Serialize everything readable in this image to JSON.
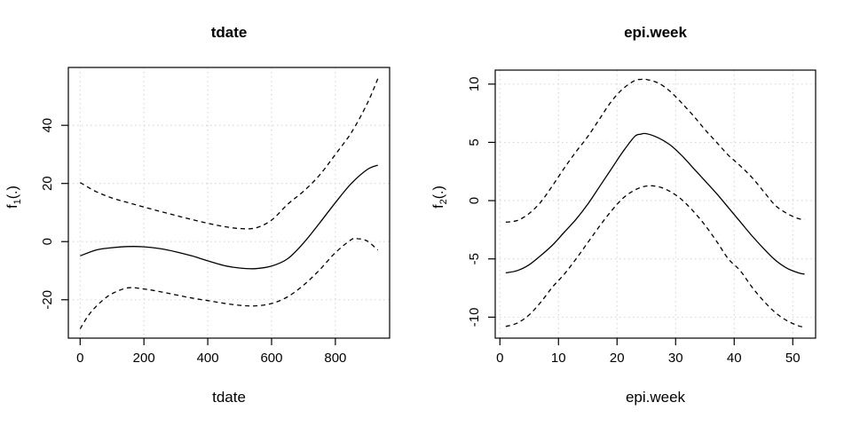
{
  "chart_data": [
    {
      "type": "line",
      "title": "tdate",
      "xlabel": "tdate",
      "ylabel": "f1(.)",
      "ylabel_parts": {
        "prefix": "f",
        "sub": "1",
        "suffix": "(.)"
      },
      "xlim": [
        -37,
        970
      ],
      "ylim": [
        -33.2,
        59.9
      ],
      "xticks": [
        0,
        200,
        400,
        600,
        800
      ],
      "yticks": [
        -20,
        0,
        20,
        40
      ],
      "grid": true,
      "legend": null,
      "colors": {
        "line": "#000000",
        "grid": "#d6d6d6",
        "box": "#000000"
      },
      "series": [
        {
          "name": "fit",
          "style": "solid",
          "x": [
            0,
            50,
            100,
            150,
            200,
            250,
            300,
            350,
            400,
            450,
            500,
            550,
            600,
            650,
            700,
            750,
            800,
            850,
            900,
            933
          ],
          "y": [
            -4.9,
            -2.9,
            -2.1,
            -1.7,
            -1.8,
            -2.4,
            -3.5,
            -4.9,
            -6.6,
            -8.2,
            -9.1,
            -9.3,
            -8.4,
            -5.9,
            -0.5,
            6.3,
            13.4,
            20.0,
            24.8,
            26.3
          ]
        },
        {
          "name": "upper-95-ci",
          "style": "dashed",
          "x": [
            0,
            50,
            100,
            150,
            200,
            250,
            300,
            350,
            400,
            450,
            500,
            550,
            600,
            650,
            700,
            750,
            800,
            850,
            900,
            933
          ],
          "y": [
            20.3,
            17.2,
            15.0,
            13.4,
            11.9,
            10.4,
            9.0,
            7.6,
            6.3,
            5.2,
            4.5,
            4.7,
            7.4,
            12.8,
            17.3,
            22.8,
            30.0,
            37.5,
            47.5,
            56.0
          ]
        },
        {
          "name": "lower-95-ci",
          "style": "dashed",
          "x": [
            0,
            25,
            50,
            75,
            100,
            150,
            200,
            250,
            300,
            350,
            400,
            450,
            500,
            550,
            600,
            650,
            700,
            750,
            800,
            850,
            870,
            900,
            933
          ],
          "y": [
            -30.0,
            -25.5,
            -22.3,
            -19.8,
            -17.9,
            -15.9,
            -16.3,
            -17.2,
            -18.3,
            -19.4,
            -20.3,
            -21.2,
            -21.9,
            -22.1,
            -21.3,
            -19.0,
            -15.0,
            -9.8,
            -3.8,
            0.7,
            1.0,
            0.2,
            -2.9
          ]
        }
      ]
    },
    {
      "type": "line",
      "title": "epi.week",
      "xlabel": "epi.week",
      "ylabel": "f2(.)",
      "ylabel_parts": {
        "prefix": "f",
        "sub": "2",
        "suffix": "(.)"
      },
      "xlim": [
        -0.8,
        53.9
      ],
      "ylim": [
        -11.8,
        11.2
      ],
      "xticks": [
        0,
        10,
        20,
        30,
        40,
        50
      ],
      "yticks": [
        -10,
        -5,
        0,
        5,
        10
      ],
      "grid": true,
      "legend": null,
      "colors": {
        "line": "#000000",
        "grid": "#d6d6d6",
        "box": "#000000"
      },
      "series": [
        {
          "name": "fit",
          "style": "solid",
          "x": [
            1,
            3,
            5,
            7,
            9,
            11,
            13,
            15,
            17,
            19,
            21,
            23,
            24,
            25,
            27,
            29,
            31,
            33,
            35,
            37,
            39,
            41,
            43,
            45,
            47,
            49,
            51,
            52
          ],
          "y": [
            -6.2,
            -6.0,
            -5.5,
            -4.7,
            -3.8,
            -2.7,
            -1.6,
            -0.3,
            1.2,
            2.7,
            4.2,
            5.5,
            5.7,
            5.75,
            5.4,
            4.8,
            3.9,
            2.8,
            1.7,
            0.6,
            -0.6,
            -1.8,
            -3.0,
            -4.1,
            -5.1,
            -5.8,
            -6.2,
            -6.3
          ]
        },
        {
          "name": "upper-95-ci",
          "style": "dashed",
          "x": [
            1,
            3,
            5,
            7,
            9,
            11,
            13,
            15,
            17,
            19,
            21,
            23,
            24,
            25,
            27,
            29,
            31,
            33,
            35,
            37,
            39,
            41,
            43,
            45,
            47,
            49,
            51,
            52
          ],
          "y": [
            -1.85,
            -1.7,
            -1.1,
            -0.1,
            1.3,
            2.8,
            4.2,
            5.5,
            7.0,
            8.5,
            9.6,
            10.3,
            10.4,
            10.4,
            10.1,
            9.4,
            8.4,
            7.3,
            6.1,
            5.0,
            3.9,
            3.0,
            2.0,
            0.8,
            -0.4,
            -1.1,
            -1.55,
            -1.6
          ]
        },
        {
          "name": "lower-95-ci",
          "style": "dashed",
          "x": [
            1,
            3,
            5,
            7,
            9,
            11,
            13,
            15,
            17,
            19,
            21,
            23,
            25,
            27,
            29,
            31,
            33,
            35,
            37,
            39,
            41,
            43,
            45,
            47,
            49,
            51,
            52
          ],
          "y": [
            -10.8,
            -10.5,
            -9.8,
            -8.7,
            -7.4,
            -6.3,
            -5.0,
            -3.6,
            -2.2,
            -0.9,
            0.2,
            0.9,
            1.25,
            1.2,
            0.8,
            0.1,
            -0.9,
            -2.1,
            -3.5,
            -5.0,
            -6.0,
            -7.4,
            -8.6,
            -9.6,
            -10.3,
            -10.75,
            -10.85
          ]
        }
      ]
    }
  ]
}
